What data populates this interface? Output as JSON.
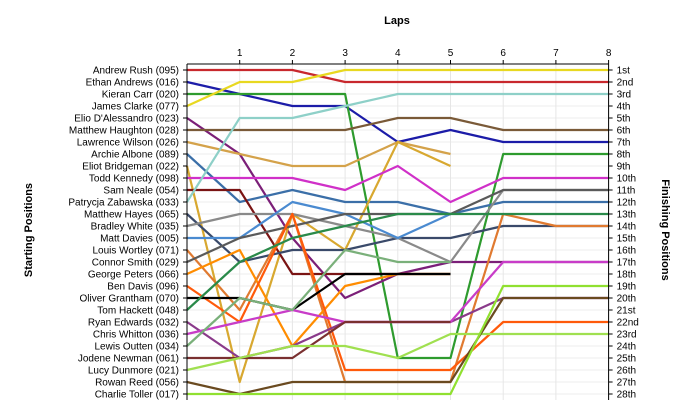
{
  "chart_data": {
    "type": "line",
    "x_axis_title": "Laps",
    "left_axis_title": "Starting Positions",
    "right_axis_title": "Finishing Positions",
    "laps": [
      1,
      2,
      3,
      4,
      5,
      6,
      7,
      8
    ],
    "x_range": [
      0,
      8
    ],
    "y_range": [
      1,
      28
    ],
    "grid": true,
    "drivers": [
      "Andrew Rush (095)",
      "Ethan Andrews (016)",
      "Kieran Carr (020)",
      "James Clarke (077)",
      "Elio D'Alessandro (023)",
      "Matthew Haughton (028)",
      "Lawrence Wilson (026)",
      "Archie Albone (089)",
      "Eliot Bridgeman (022)",
      "Todd Kennedy (098)",
      "Sam Neale (054)",
      "Patrycja Zabawska (033)",
      "Matthew Hayes (065)",
      "Bradley White (035)",
      "Matt Davies (005)",
      "Louis Wortley (071)",
      "Connor Smith (029)",
      "George Peters (066)",
      "Ben Davis (096)",
      "Oliver Grantham (070)",
      "Tom Hackett (048)",
      "Ryan Edwards (032)",
      "Chris Whitton (036)",
      "Lewis Outten (034)",
      "Jodene Newman (061)",
      "Lucy Dunmore (021)",
      "Rowan Reed (056)",
      "Charlie Toller (017)"
    ],
    "finishing_labels": [
      "1st",
      "2nd",
      "3rd",
      "4th",
      "5th",
      "6th",
      "7th",
      "8th",
      "9th",
      "10th",
      "11th",
      "12th",
      "13th",
      "14th",
      "15th",
      "16th",
      "17th",
      "18th",
      "19th",
      "20th",
      "21st",
      "22nd",
      "23rd",
      "24th",
      "25th",
      "26th",
      "27th",
      "28th"
    ],
    "series": [
      {
        "color": "#c8282d",
        "values": [
          1,
          1,
          1,
          2,
          2,
          2,
          2,
          2,
          2
        ]
      },
      {
        "color": "#1c1ca8",
        "values": [
          2,
          3,
          4,
          4,
          7,
          6,
          7,
          7,
          7
        ]
      },
      {
        "color": "#2e9b2e",
        "values": [
          3,
          3,
          3,
          3,
          25,
          25,
          8,
          8,
          8
        ]
      },
      {
        "color": "#e8d820",
        "values": [
          4,
          2,
          2,
          1,
          1,
          1,
          1,
          1,
          1
        ]
      },
      {
        "color": "#7b1f78",
        "values": [
          5,
          8,
          15,
          20,
          18,
          17,
          17,
          17,
          17
        ]
      },
      {
        "color": "#7a5a38",
        "values": [
          6,
          6,
          6,
          6,
          5,
          5,
          6,
          6,
          6
        ]
      },
      {
        "color": "#d4a24a",
        "values": [
          7,
          8,
          9,
          9,
          7,
          8
        ]
      },
      {
        "color": "#3b6fa8",
        "values": [
          8,
          12,
          11,
          12,
          12,
          13,
          12,
          12,
          12
        ]
      },
      {
        "color": "#d8a830",
        "values": [
          9,
          27,
          13,
          16,
          7,
          9
        ]
      },
      {
        "color": "#d030c8",
        "values": [
          10,
          10,
          10,
          11,
          9,
          12,
          10,
          10,
          10
        ]
      },
      {
        "color": "#7a1414",
        "values": [
          11,
          11,
          18,
          18,
          18,
          18
        ]
      },
      {
        "color": "#8ed0c8",
        "values": [
          12,
          5,
          5,
          4,
          3,
          3,
          3,
          3,
          3
        ]
      },
      {
        "color": "#3a4a6a",
        "values": [
          13,
          17,
          16,
          16,
          15,
          15,
          14,
          14,
          14
        ]
      },
      {
        "color": "#8a8a8a",
        "values": [
          14,
          13,
          13,
          14,
          15,
          17,
          11,
          11,
          11
        ]
      },
      {
        "color": "#4a8ad0",
        "values": [
          15,
          15,
          12,
          13,
          15,
          13
        ]
      },
      {
        "color": "#e07a30",
        "values": [
          16,
          21,
          13,
          27,
          27,
          27,
          13,
          14,
          14
        ]
      },
      {
        "color": "#5a5a5a",
        "values": [
          17,
          15,
          14,
          13,
          13,
          13,
          11,
          11,
          11
        ]
      },
      {
        "color": "#ff8c00",
        "values": [
          18,
          16,
          24,
          19,
          18,
          18
        ]
      },
      {
        "color": "#ff5a0a",
        "values": [
          19,
          22,
          13,
          26,
          26,
          26,
          22,
          22,
          22
        ]
      },
      {
        "color": "#000000",
        "values": [
          20,
          20,
          21,
          18,
          18,
          18
        ]
      },
      {
        "color": "#2a8a4a",
        "values": [
          21,
          17,
          15,
          14,
          13,
          13,
          13,
          13,
          13
        ]
      },
      {
        "color": "#8a3a8a",
        "values": [
          22,
          25,
          24,
          22,
          22,
          22,
          20,
          20,
          20
        ]
      },
      {
        "color": "#c83cc8",
        "values": [
          23,
          22,
          21,
          22,
          22,
          22,
          17,
          17,
          17
        ]
      },
      {
        "color": "#7ab07a",
        "values": [
          24,
          20,
          21,
          16,
          17,
          17
        ]
      },
      {
        "color": "#7a3030",
        "values": [
          25,
          25,
          25,
          22,
          22,
          22
        ]
      },
      {
        "color": "#a0e050",
        "values": [
          26,
          25,
          24,
          24,
          25,
          23,
          23,
          23,
          23
        ]
      },
      {
        "color": "#6a4a20",
        "values": [
          27,
          28,
          27,
          27,
          27,
          27,
          20,
          20,
          20
        ]
      },
      {
        "color": "#90e030",
        "values": [
          28,
          28,
          28,
          28,
          28,
          28,
          19,
          19,
          19
        ]
      }
    ]
  }
}
